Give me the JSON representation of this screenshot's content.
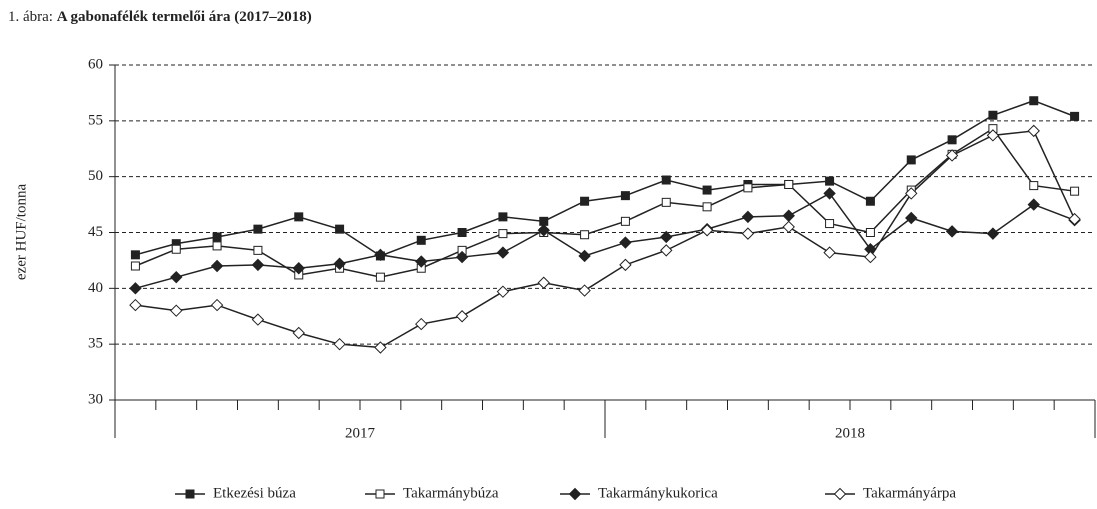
{
  "chart_data": {
    "type": "line",
    "title_label": "1. ábra:",
    "title": "A gabonafélék termelői ára (2017–2018)",
    "y_label": "ezer HUF/tonna",
    "categories": [
      null,
      null,
      null,
      null,
      null,
      null,
      null,
      null,
      null,
      null,
      null,
      null,
      null,
      null,
      null,
      null,
      null,
      null,
      null,
      null,
      null,
      null,
      null,
      null
    ],
    "groups": [
      "2017",
      "2018"
    ],
    "ylim": [
      30,
      60
    ],
    "yticks": [
      30,
      35,
      40,
      45,
      50,
      55,
      60
    ],
    "grid": true,
    "legend": "bottom",
    "series": [
      {
        "name": "Etkezési búza",
        "color": "#222222",
        "marker": "square",
        "filled": true,
        "values": [
          43,
          44,
          44.6,
          45.3,
          46.4,
          45.3,
          42.9,
          44.3,
          45,
          46.4,
          46,
          47.8,
          48.3,
          49.7,
          48.8,
          49.3,
          49.3,
          49.6,
          47.8,
          51.5,
          53.3,
          55.5,
          56.8,
          55.4
        ]
      },
      {
        "name": "Takarmánybúza",
        "color": "#222222",
        "marker": "square",
        "filled": false,
        "values": [
          42,
          43.5,
          43.8,
          43.4,
          41.2,
          41.8,
          41,
          41.8,
          43.4,
          44.9,
          45,
          44.8,
          46,
          47.7,
          47.3,
          49,
          49.3,
          45.8,
          45,
          48.8,
          52,
          54.3,
          49.2,
          48.7
        ]
      },
      {
        "name": "Takarmánykukorica",
        "color": "#222222",
        "marker": "diamond",
        "filled": true,
        "values": [
          40,
          41,
          42,
          42.1,
          41.8,
          42.2,
          43,
          42.4,
          42.8,
          43.2,
          45.2,
          42.9,
          44.1,
          44.6,
          45.3,
          46.4,
          46.5,
          48.5,
          43.5,
          46.3,
          45.1,
          44.9,
          47.5,
          46.1
        ]
      },
      {
        "name": "Takarmányárpa",
        "color": "#222222",
        "marker": "diamond",
        "filled": false,
        "values": [
          38.5,
          38,
          38.5,
          37.2,
          36,
          35,
          34.7,
          36.8,
          37.5,
          39.7,
          40.5,
          39.8,
          42.1,
          43.4,
          45.2,
          44.9,
          45.5,
          43.2,
          42.8,
          48.5,
          51.9,
          53.7,
          54.1,
          46.2
        ]
      }
    ]
  }
}
